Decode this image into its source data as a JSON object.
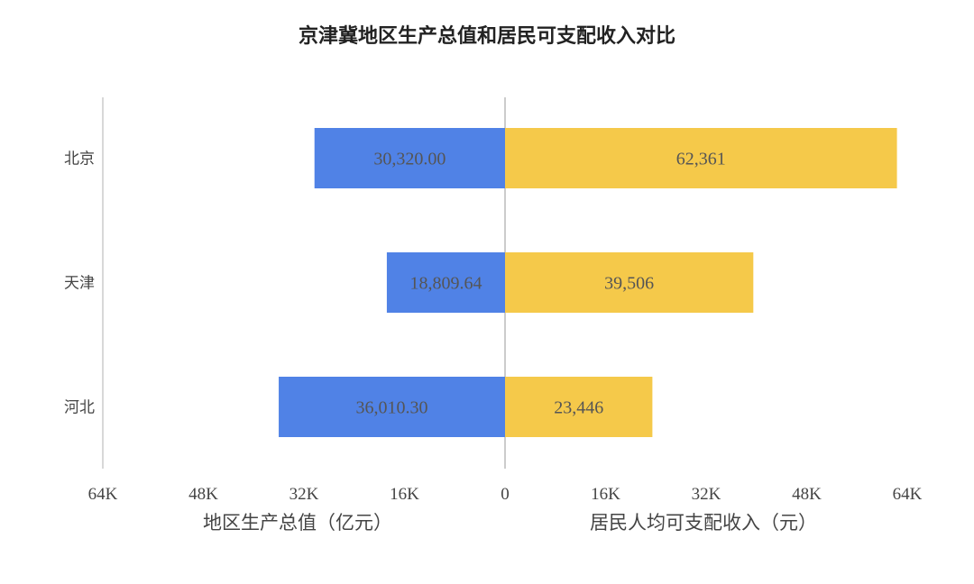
{
  "chart_data": {
    "type": "bar",
    "orientation": "horizontal-butterfly",
    "title": "京津冀地区生产总值和居民可支配收入对比",
    "categories": [
      "北京",
      "天津",
      "河北"
    ],
    "series": [
      {
        "name": "地区生产总值（亿元）",
        "side": "left",
        "color": "#5082e6",
        "values": [
          30320.0,
          18809.64,
          36010.3
        ],
        "labels": [
          "30,320.00",
          "18,809.64",
          "36,010.30"
        ]
      },
      {
        "name": "居民人均可支配收入（元）",
        "side": "right",
        "color": "#f5c94a",
        "values": [
          62361,
          39506,
          23446
        ],
        "labels": [
          "62,361",
          "39,506",
          "23,446"
        ]
      }
    ],
    "left_axis": {
      "ticks": [
        "64K",
        "48K",
        "32K",
        "16K"
      ],
      "tick_values": [
        64000,
        48000,
        32000,
        16000
      ],
      "range": [
        0,
        64000
      ]
    },
    "right_axis": {
      "ticks": [
        "16K",
        "32K",
        "48K",
        "64K"
      ],
      "tick_values": [
        16000,
        32000,
        48000,
        64000
      ],
      "range": [
        0,
        64000
      ]
    },
    "center_tick": "0",
    "grid": false,
    "axis_line_color": "#cccccc"
  }
}
